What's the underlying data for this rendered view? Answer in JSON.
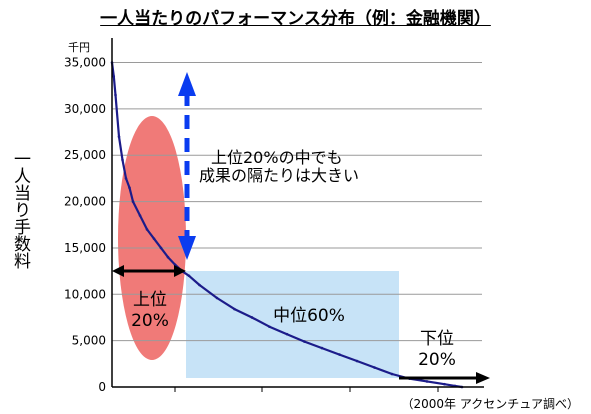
{
  "chart_data": {
    "type": "line",
    "title": "一人当たりのパフォーマンス分布（例：金融機関）",
    "ylabel": "一人当り手数料",
    "y_unit": "千円",
    "ylim": [
      0,
      37000
    ],
    "yticks": [
      {
        "value": 0,
        "label": "0"
      },
      {
        "value": 5000,
        "label": "5,000"
      },
      {
        "value": 10000,
        "label": "10,000"
      },
      {
        "value": 15000,
        "label": "15,000"
      },
      {
        "value": 20000,
        "label": "20,000"
      },
      {
        "value": 25000,
        "label": "25,000"
      },
      {
        "value": 30000,
        "label": "30,000"
      },
      {
        "value": 35000,
        "label": "35,000"
      }
    ],
    "x_axis": "rank percentile (0-100%)",
    "grid": true,
    "series": [
      {
        "x": [
          0,
          0.5,
          1,
          2,
          3,
          4,
          5,
          6,
          8,
          10,
          12,
          14,
          16,
          18,
          20,
          22,
          25,
          30,
          35,
          40,
          45,
          50,
          55,
          60,
          65,
          70,
          75,
          80,
          85,
          90,
          95,
          98,
          100
        ],
        "values": [
          35000,
          33500,
          31500,
          27000,
          24500,
          22500,
          21500,
          20000,
          18500,
          17000,
          16000,
          15000,
          14000,
          13200,
          12500,
          12000,
          11000,
          9600,
          8400,
          7500,
          6500,
          5700,
          4900,
          4200,
          3500,
          2800,
          2100,
          1400,
          900,
          600,
          300,
          120,
          0
        ]
      }
    ],
    "annotations": {
      "spread_note": [
        "上位20%の中でも",
        "成果の隔たりは大きい"
      ],
      "top_label": [
        "上位",
        "20%"
      ],
      "mid_label": "中位60%",
      "bottom_label": [
        "下位",
        "20%"
      ]
    },
    "source": "（2000年 アクセンチュア調べ）"
  },
  "colors": {
    "line": "#1c1c8a",
    "top_ellipse": "#f07a78",
    "mid_box": "#c7e3f7",
    "blue_arrow": "#0a3cf0",
    "grid": "#9a9a9a"
  }
}
